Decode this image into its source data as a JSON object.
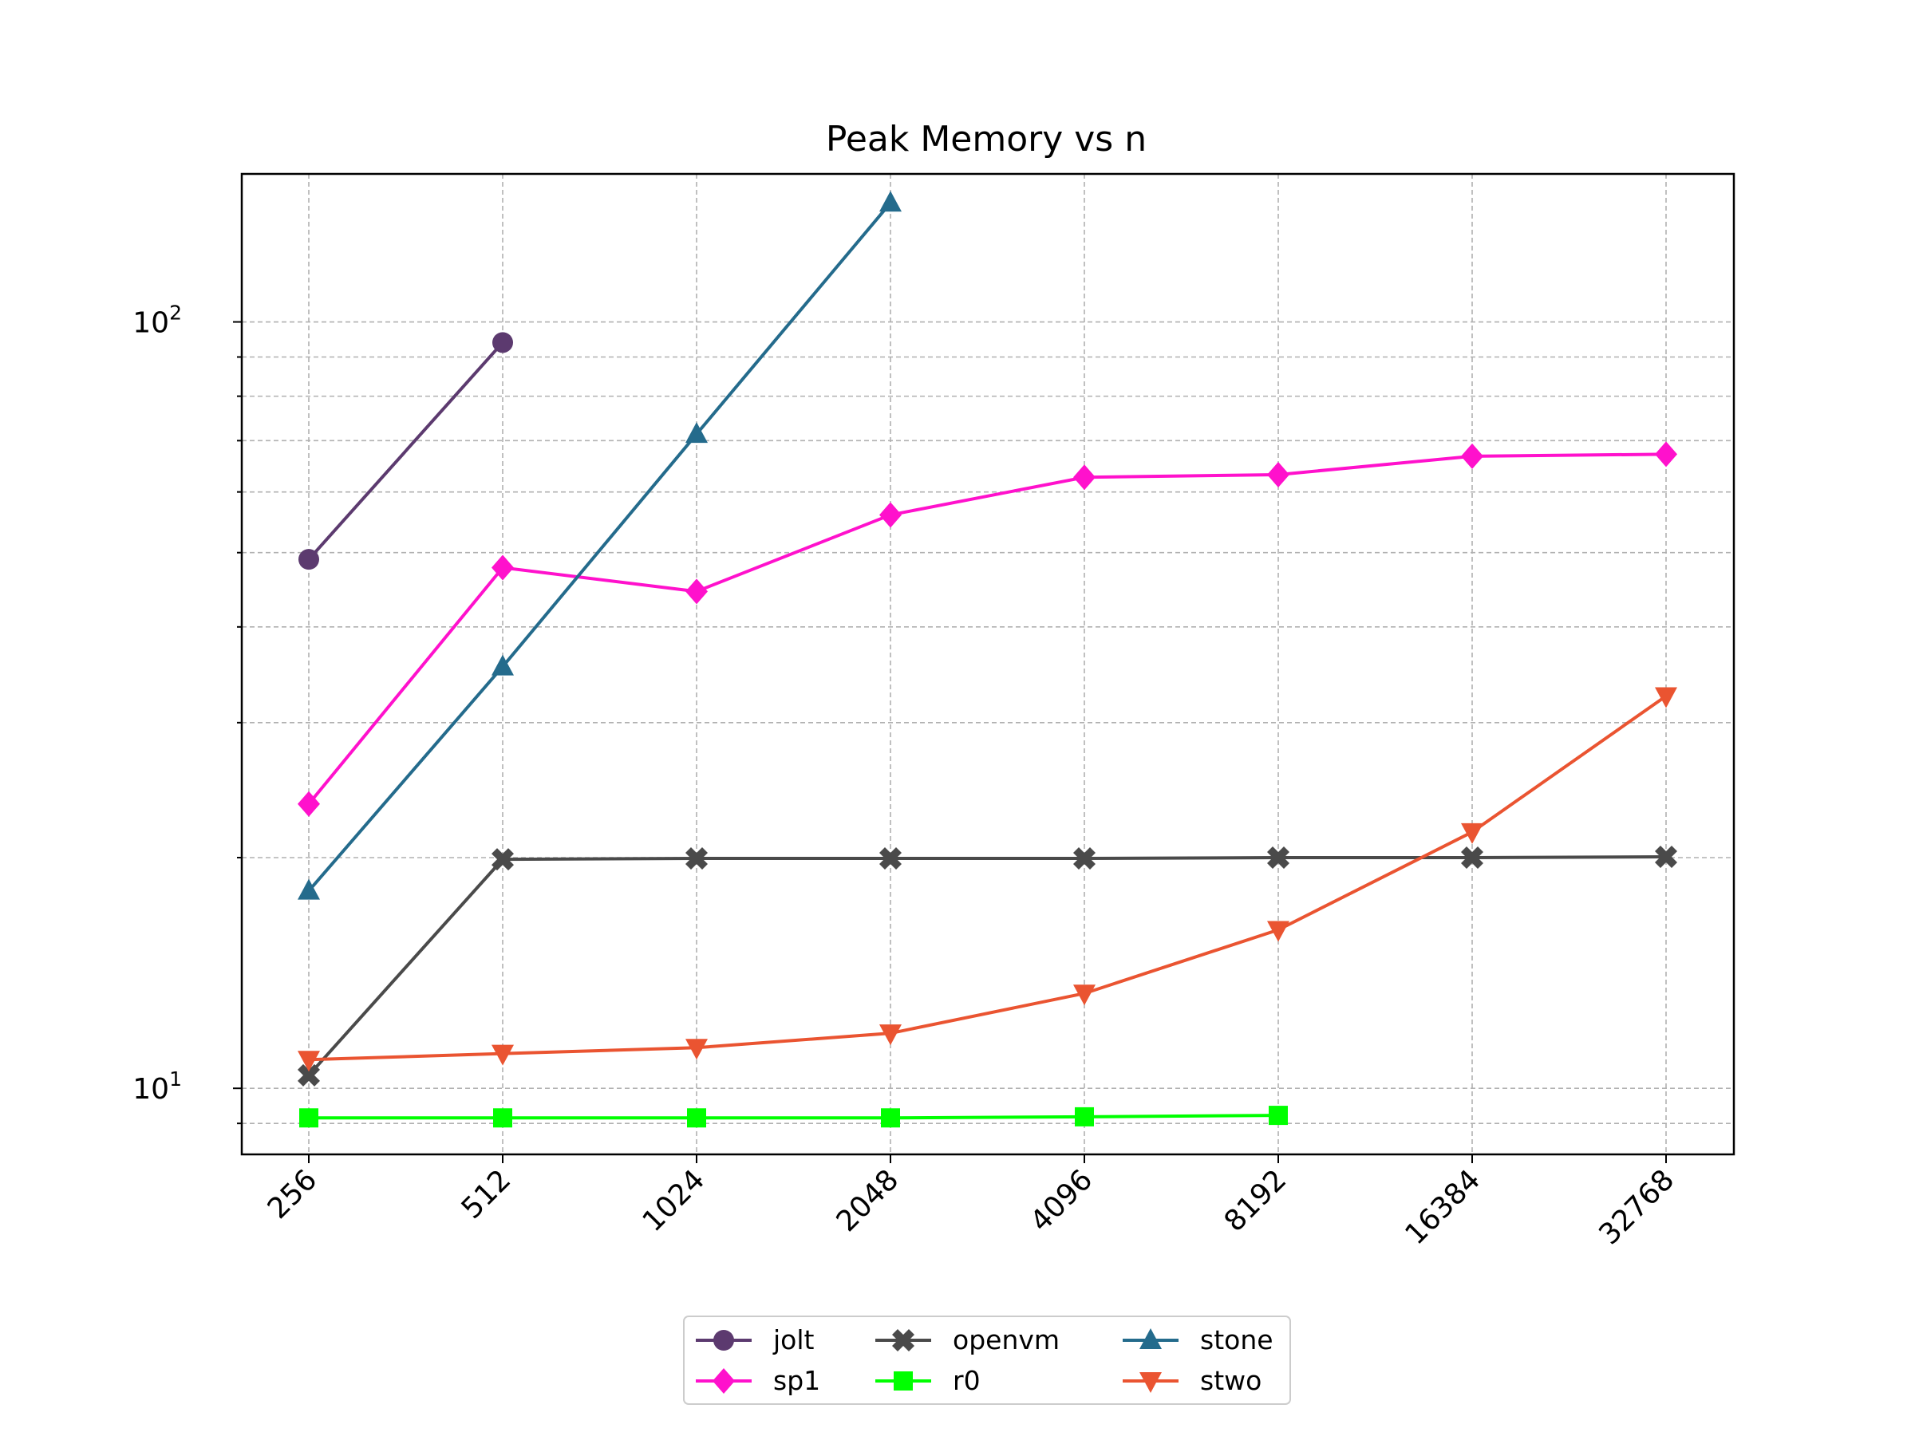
{
  "chart_data": {
    "type": "line",
    "title": "Peak Memory vs n",
    "xlabel": "",
    "ylabel": "",
    "x_scale": "log2 (evenly spaced categories)",
    "y_scale": "log",
    "categories": [
      "256",
      "512",
      "1024",
      "2048",
      "4096",
      "8192",
      "16384",
      "32768"
    ],
    "y_tick_labels": [
      {
        "value": 10,
        "base": "10",
        "exp": "1"
      },
      {
        "value": 100,
        "base": "10",
        "exp": "2"
      }
    ],
    "ylim": [
      8.2,
      156
    ],
    "grid": true,
    "legend_position": "bottom-center",
    "series": [
      {
        "name": "jolt",
        "color": "#5c3a6f",
        "marker": "circle",
        "values": [
          49,
          94,
          null,
          null,
          null,
          null,
          null,
          null
        ]
      },
      {
        "name": "sp1",
        "color": "#ff11cc",
        "marker": "diamond",
        "values": [
          23.5,
          47.8,
          44.5,
          56,
          62.7,
          63.2,
          66.8,
          67.2
        ]
      },
      {
        "name": "openvm",
        "color": "#4a4a4a",
        "marker": "x",
        "values": [
          10.4,
          19.9,
          19.95,
          19.95,
          19.95,
          20,
          20,
          20.05
        ]
      },
      {
        "name": "r0",
        "color": "#00ff00",
        "marker": "square",
        "values": [
          9.15,
          9.15,
          9.15,
          9.15,
          9.18,
          9.22,
          null,
          null
        ]
      },
      {
        "name": "stone",
        "color": "#246b8c",
        "marker": "triangle-up",
        "values": [
          18.1,
          35.5,
          71.4,
          143,
          null,
          null,
          null,
          null
        ]
      },
      {
        "name": "stwo",
        "color": "#ea5431",
        "marker": "triangle-down",
        "values": [
          10.9,
          11.1,
          11.3,
          11.8,
          13.3,
          16.1,
          21.6,
          32.5
        ]
      }
    ]
  }
}
